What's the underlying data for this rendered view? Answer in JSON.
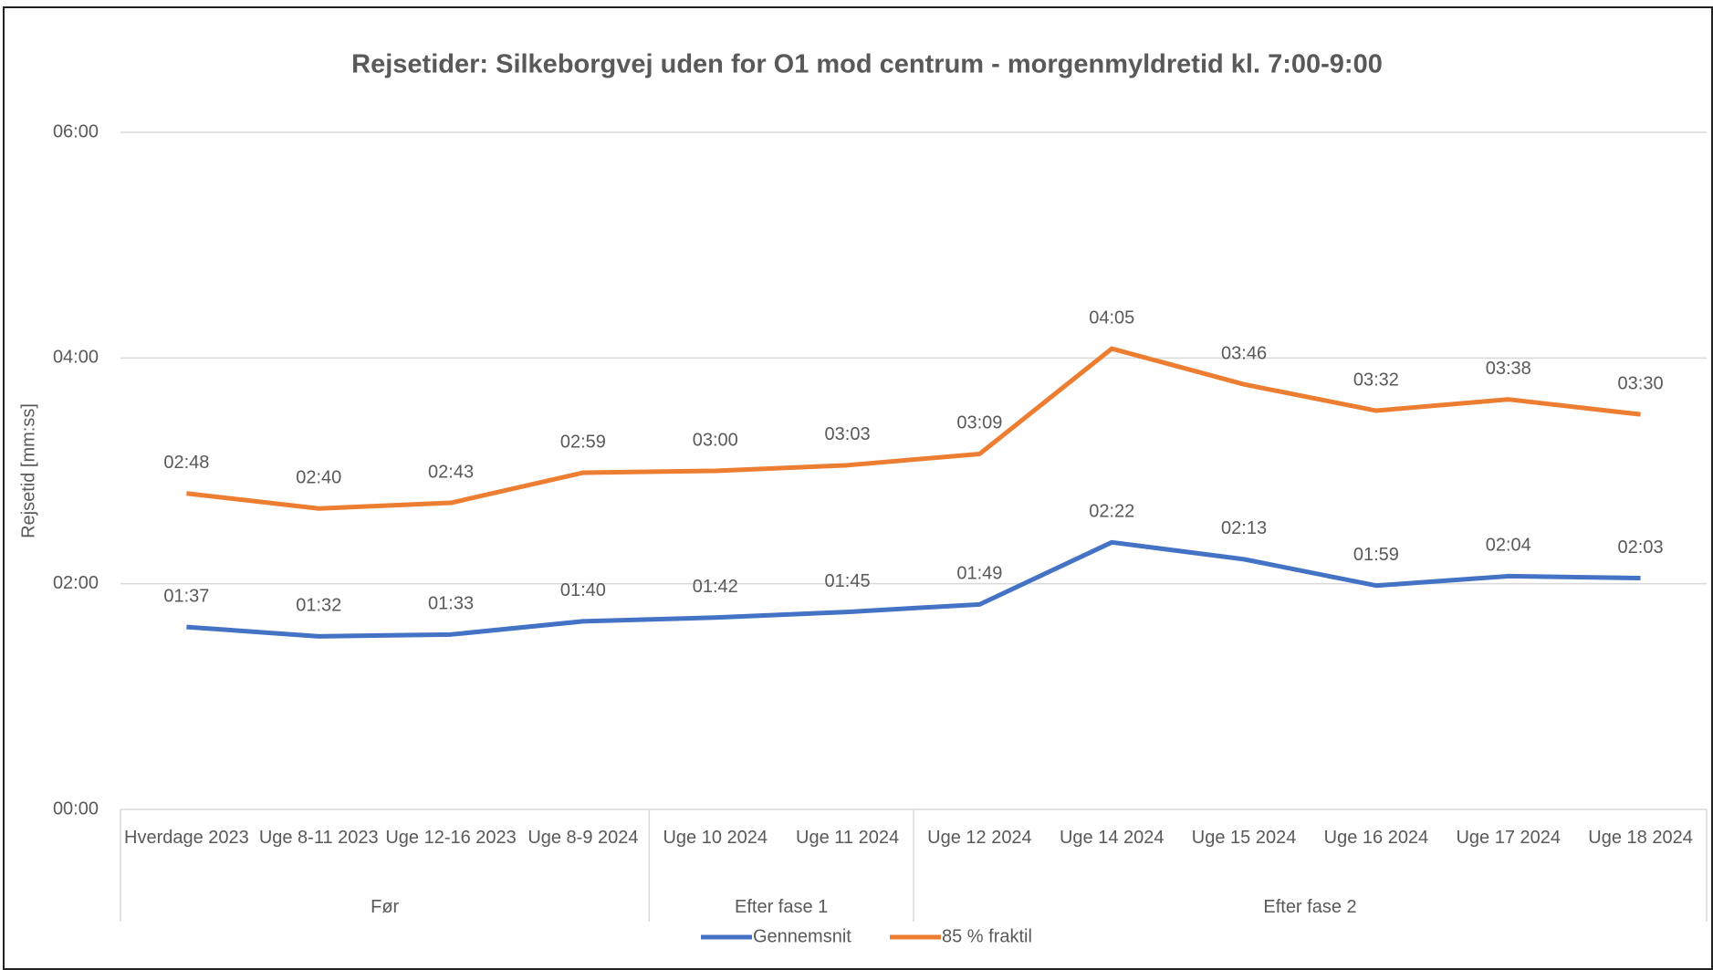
{
  "chart_data": {
    "type": "line",
    "title": "Rejsetider: Silkeborgvej uden for O1 mod centrum - morgenmyldretid kl. 7:00-9:00",
    "y_label": "Rejsetid [mm:ss]",
    "categories": [
      "Hverdage 2023",
      "Uge 8-11 2023",
      "Uge 12-16 2023",
      "Uge 8-9 2024",
      "Uge 10 2024",
      "Uge 11 2024",
      "Uge 12 2024",
      "Uge 14 2024",
      "Uge 15 2024",
      "Uge 16 2024",
      "Uge 17 2024",
      "Uge 18 2024"
    ],
    "groups": [
      {
        "label": "Før",
        "span": 4
      },
      {
        "label": "Efter fase 1",
        "span": 2
      },
      {
        "label": "Efter fase 2",
        "span": 6
      }
    ],
    "series": [
      {
        "name": "Gennemsnit",
        "color": "#4472c4",
        "values": [
          97,
          92,
          93,
          100,
          102,
          105,
          109,
          142,
          133,
          119,
          124,
          123
        ],
        "value_labels": [
          "01:37",
          "01:32",
          "01:33",
          "01:40",
          "01:42",
          "01:45",
          "01:49",
          "02:22",
          "02:13",
          "01:59",
          "02:04",
          "02:03"
        ]
      },
      {
        "name": "85 % fraktil",
        "color": "#ed7d31",
        "values": [
          168,
          160,
          163,
          179,
          180,
          183,
          189,
          245,
          226,
          212,
          218,
          210
        ],
        "value_labels": [
          "02:48",
          "02:40",
          "02:43",
          "02:59",
          "03:00",
          "03:03",
          "03:09",
          "04:05",
          "03:46",
          "03:32",
          "03:38",
          "03:30"
        ]
      }
    ],
    "ylim": [
      0,
      360
    ],
    "yticks": [
      {
        "value": 0,
        "label": "00:00"
      },
      {
        "value": 120,
        "label": "02:00"
      },
      {
        "value": 240,
        "label": "04:00"
      },
      {
        "value": 360,
        "label": "06:00"
      }
    ],
    "grid": true,
    "legend": "bottom"
  }
}
